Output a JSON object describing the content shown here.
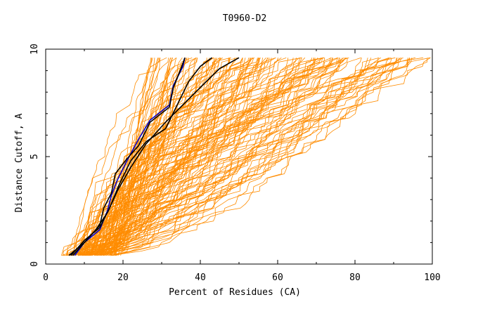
{
  "chart_data": {
    "type": "line",
    "title": "T0960-D2",
    "xlabel": "Percent of Residues (CA)",
    "ylabel": "Distance Cutoff, A",
    "xlim": [
      0,
      100
    ],
    "ylim": [
      0,
      10
    ],
    "x_ticks": [
      "0",
      "20",
      "40",
      "60",
      "80",
      "100"
    ],
    "y_ticks": [
      "0",
      "5",
      "10"
    ],
    "grid": false,
    "legend": "none",
    "colors": {
      "background_models": "#ff8c00",
      "highlight_blue": "#0000cc",
      "highlight_black": "#000000"
    },
    "background_model_count": 140,
    "highlight_series": [
      {
        "color": "#0000cc",
        "x": [
          7.5,
          10,
          14,
          16,
          17,
          18.5,
          21,
          24,
          27,
          32,
          33,
          35.5,
          36
        ],
        "y": [
          0.4,
          1.0,
          1.6,
          2.5,
          3.2,
          3.9,
          4.8,
          5.8,
          6.7,
          7.4,
          8.3,
          9.2,
          9.6
        ]
      },
      {
        "color": "#000000",
        "x": [
          7,
          11,
          14,
          15,
          17,
          18,
          21,
          24,
          27,
          32,
          33,
          35,
          36
        ],
        "y": [
          0.4,
          1.2,
          1.8,
          2.6,
          3.3,
          4.2,
          4.9,
          5.5,
          6.6,
          7.3,
          8.2,
          9.1,
          9.6
        ]
      },
      {
        "color": "#000000",
        "x": [
          6.5,
          10,
          14,
          16.5,
          19,
          22,
          26,
          31,
          34,
          37,
          40,
          43
        ],
        "y": [
          0.4,
          1.1,
          1.7,
          2.6,
          3.7,
          4.8,
          5.7,
          6.3,
          7.4,
          8.5,
          9.2,
          9.6
        ]
      },
      {
        "color": "#000000",
        "x": [
          6,
          10,
          13,
          16,
          18.5,
          22,
          26,
          31,
          36,
          41,
          45,
          50
        ],
        "y": [
          0.4,
          1.0,
          1.6,
          2.4,
          3.4,
          4.5,
          5.6,
          6.6,
          7.5,
          8.4,
          9.1,
          9.6
        ]
      }
    ]
  }
}
